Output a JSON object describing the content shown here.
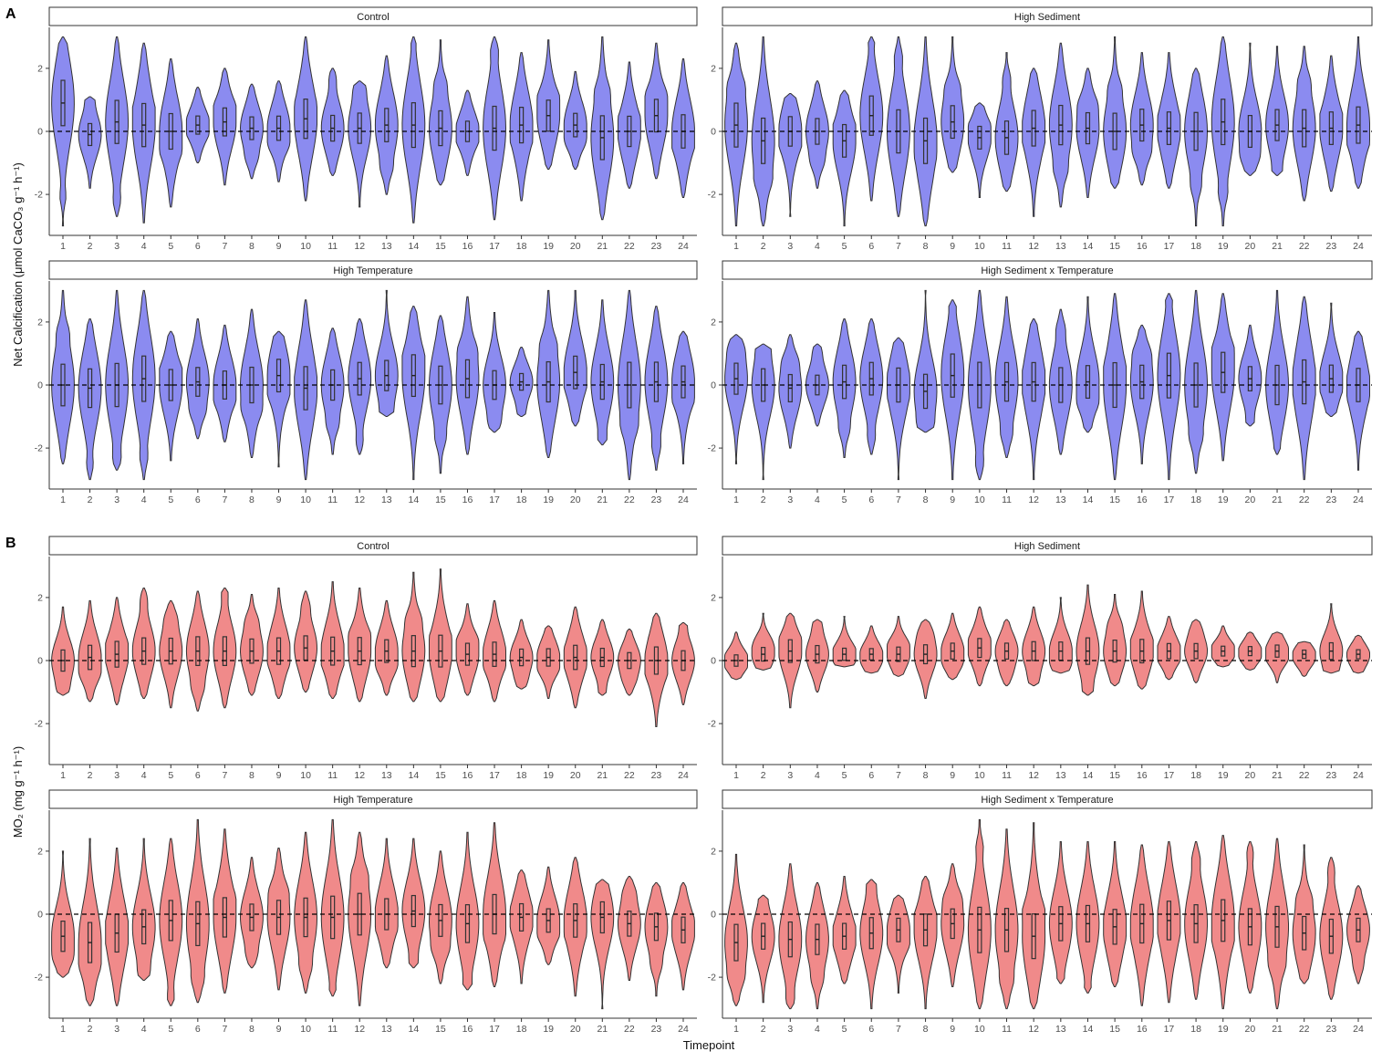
{
  "figure": {
    "panel_letters": [
      "A",
      "B"
    ],
    "xlabel": "Timepoint"
  },
  "chart_data": [
    {
      "type": "violin",
      "panel": "A",
      "ylabel": "Net Calcification (μmol CaCO₃ g⁻¹ h⁻¹)",
      "ylim": [
        -3.3,
        3.3
      ],
      "yticks": [
        -2,
        0,
        2
      ],
      "x": [
        1,
        2,
        3,
        4,
        5,
        6,
        7,
        8,
        9,
        10,
        11,
        12,
        13,
        14,
        15,
        16,
        17,
        18,
        19,
        20,
        21,
        22,
        23,
        24
      ],
      "color": "#8b8bf0",
      "reference_line": 0,
      "facets": [
        {
          "name": "Control",
          "min": [
            -3,
            -1.8,
            -2.7,
            -2.9,
            -2.4,
            -1,
            -1.7,
            -1.5,
            -1.6,
            -2.2,
            -1.4,
            -2.4,
            -2,
            -2.9,
            -1.7,
            -1.4,
            -2.8,
            -2.2,
            -1.2,
            -1.2,
            -2.8,
            -1.8,
            -1.5,
            -2.1
          ],
          "max": [
            3,
            1.1,
            3,
            2.8,
            2.3,
            1.4,
            2,
            1.5,
            1.6,
            3,
            2,
            1.6,
            2.4,
            3,
            2.9,
            1.3,
            3,
            2.5,
            2.9,
            1.9,
            3,
            2.2,
            2.8,
            2.3
          ],
          "median": [
            0.9,
            -0.1,
            0.3,
            0.2,
            0,
            0.2,
            0.3,
            0.1,
            0.1,
            0.4,
            0.1,
            0.1,
            0.2,
            0.2,
            0.1,
            0,
            0.1,
            0.2,
            0.5,
            0.2,
            -0.2,
            0,
            0.5,
            0
          ]
        },
        {
          "name": "High Sediment",
          "min": [
            -3,
            -3,
            -2.7,
            -1.8,
            -3,
            -2.2,
            -2.7,
            -3,
            -1.3,
            -2.1,
            -1.9,
            -2.7,
            -2.4,
            -2.1,
            -1.8,
            -1.7,
            -1.8,
            -3,
            -3,
            -1.4,
            -1.4,
            -2.2,
            -1.9,
            -1.8
          ],
          "max": [
            2.8,
            3,
            1.2,
            1.6,
            1.3,
            3,
            3,
            3,
            3,
            0.9,
            2.5,
            2,
            2.8,
            2,
            3,
            2.5,
            2.5,
            2,
            3,
            2.8,
            2.7,
            2.7,
            2.4,
            3
          ],
          "median": [
            0.2,
            -0.3,
            0,
            0,
            -0.3,
            0.5,
            0,
            -0.3,
            0.3,
            -0.2,
            -0.2,
            0.1,
            0.2,
            0.1,
            0,
            0.2,
            0.1,
            0,
            0.3,
            0,
            0.2,
            0.1,
            0.1,
            0.2
          ]
        },
        {
          "name": "High Temperature",
          "min": [
            -2.5,
            -3,
            -2.7,
            -3,
            -2.4,
            -1.7,
            -1.8,
            -2.3,
            -2.6,
            -3,
            -2.2,
            -2.2,
            -1,
            -3,
            -2.8,
            -2.2,
            -1.5,
            -1,
            -2.3,
            -1.3,
            -1.9,
            -3,
            -2.7,
            -2.5
          ],
          "max": [
            3,
            2.1,
            3,
            3,
            1.7,
            2.1,
            1.9,
            2.4,
            1.7,
            2.7,
            1.8,
            2.1,
            3,
            2.5,
            2.2,
            2.8,
            2.3,
            1.2,
            3,
            3,
            2.7,
            3,
            2.5,
            1.7
          ],
          "median": [
            0,
            -0.1,
            0,
            0.2,
            0,
            0.1,
            0,
            0,
            0.3,
            -0.1,
            0,
            0.2,
            0.3,
            0.3,
            0,
            0.2,
            0,
            0.1,
            0.1,
            0.4,
            0.1,
            0,
            0.1,
            0.1
          ]
        },
        {
          "name": "High Sediment x Temperature",
          "min": [
            -2.5,
            -3,
            -2,
            -1.3,
            -2.3,
            -2.2,
            -3,
            -1.5,
            -3,
            -3,
            -2.3,
            -3,
            -2.2,
            -1.5,
            -3,
            -2.5,
            -3,
            -2.8,
            -2.4,
            -1.3,
            -2.2,
            -3,
            -1,
            -2.7
          ],
          "max": [
            1.6,
            1.3,
            1.6,
            1.3,
            2.1,
            2.1,
            1.5,
            3,
            2.7,
            3,
            2.8,
            2.1,
            2.4,
            2.8,
            2.9,
            1.9,
            2.9,
            3,
            2.9,
            1.9,
            3,
            2.8,
            2.6,
            1.7
          ],
          "median": [
            0.2,
            0,
            -0.1,
            0,
            0.1,
            0.2,
            0,
            -0.2,
            0.3,
            0,
            0.1,
            0.1,
            0,
            0.1,
            0,
            0.1,
            0.3,
            0,
            0.4,
            0.2,
            0,
            0.1,
            0.2,
            0
          ]
        }
      ]
    },
    {
      "type": "violin",
      "panel": "B",
      "ylabel": "MO₂ (mg g⁻¹ h⁻¹)",
      "ylim": [
        -3.3,
        3.3
      ],
      "yticks": [
        -2,
        0,
        2
      ],
      "x": [
        1,
        2,
        3,
        4,
        5,
        6,
        7,
        8,
        9,
        10,
        11,
        12,
        13,
        14,
        15,
        16,
        17,
        18,
        19,
        20,
        21,
        22,
        23,
        24
      ],
      "color": "#f08a8a",
      "reference_line": 0,
      "facets": [
        {
          "name": "Control",
          "min": [
            -1.1,
            -1.3,
            -1.4,
            -1.2,
            -1.5,
            -1.6,
            -1.5,
            -1.1,
            -1.2,
            -1,
            -1.2,
            -1.3,
            -1.1,
            -1.3,
            -1.3,
            -1.1,
            -1.3,
            -0.9,
            -1.2,
            -1.5,
            -1.1,
            -1.1,
            -2.1,
            -1.4
          ],
          "max": [
            1.7,
            1.9,
            2,
            2.3,
            1.9,
            2.2,
            2.3,
            2.1,
            2.3,
            2.2,
            2.5,
            2.3,
            1.9,
            2.8,
            2.9,
            1.8,
            1.9,
            1.3,
            1.1,
            1.7,
            1.3,
            1,
            1.5,
            1.2
          ],
          "median": [
            0,
            0.1,
            0.2,
            0.3,
            0.3,
            0.3,
            0.3,
            0.3,
            0.3,
            0.4,
            0.3,
            0.3,
            0.3,
            0.3,
            0.3,
            0.2,
            0.2,
            0.1,
            0.1,
            0.1,
            0.1,
            0,
            0,
            0
          ]
        },
        {
          "name": "High Sediment",
          "min": [
            -0.6,
            -0.3,
            -1.5,
            -1,
            -0.2,
            -0.4,
            -0.5,
            -1.2,
            -0.6,
            -0.8,
            -0.8,
            -0.8,
            -0.4,
            -1.1,
            -0.8,
            -0.9,
            -0.6,
            -0.7,
            -0.2,
            -0.3,
            -0.7,
            -0.5,
            -0.4,
            -0.4
          ],
          "max": [
            0.9,
            1.5,
            1.5,
            1.3,
            1.4,
            1.1,
            1.4,
            1.3,
            1.5,
            1.7,
            1.3,
            1.7,
            2,
            2.4,
            2.1,
            2.2,
            1.4,
            1.3,
            1.1,
            0.9,
            0.9,
            0.6,
            1.8,
            0.8
          ],
          "median": [
            0,
            0.2,
            0.3,
            0.2,
            0.2,
            0.2,
            0.2,
            0.2,
            0.3,
            0.4,
            0.3,
            0.3,
            0.3,
            0.3,
            0.3,
            0.3,
            0.3,
            0.3,
            0.3,
            0.3,
            0.3,
            0.2,
            0.3,
            0.2
          ]
        },
        {
          "name": "High Temperature",
          "min": [
            -2,
            -2.9,
            -2.9,
            -2.1,
            -2.9,
            -2.8,
            -2.5,
            -1.7,
            -2.4,
            -2.5,
            -2.6,
            -2.9,
            -1.7,
            -1.7,
            -2.2,
            -2.4,
            -2.3,
            -2.2,
            -1.6,
            -2.6,
            -3,
            -2.1,
            -2.6,
            -2.4
          ],
          "max": [
            2,
            2.4,
            2.1,
            2.4,
            2.4,
            3,
            2.7,
            1.8,
            2.1,
            2.6,
            3,
            2.6,
            2.4,
            2.4,
            2,
            2.6,
            2.9,
            1.4,
            1.5,
            1.8,
            1.1,
            1.2,
            1,
            1
          ],
          "median": [
            -0.7,
            -0.9,
            -0.6,
            -0.4,
            -0.2,
            -0.3,
            -0.1,
            -0.1,
            -0.1,
            -0.1,
            -0.1,
            0,
            0,
            0.1,
            -0.2,
            -0.3,
            0,
            -0.1,
            -0.2,
            -0.2,
            -0.1,
            -0.3,
            -0.4,
            -0.5
          ]
        },
        {
          "name": "High Sediment x Temperature",
          "min": [
            -2.9,
            -2.8,
            -3,
            -3,
            -2.2,
            -3,
            -2.5,
            -3,
            -2.3,
            -3,
            -3,
            -3,
            -2.2,
            -2.5,
            -2.3,
            -2.9,
            -2.8,
            -2.7,
            -3,
            -2.5,
            -3,
            -2.2,
            -2.7,
            -2.2
          ],
          "max": [
            1.9,
            0.6,
            1.6,
            1,
            1.2,
            1.1,
            0.6,
            1.2,
            1.6,
            3,
            2.7,
            2.9,
            2.3,
            2.3,
            2.3,
            2.2,
            2.3,
            2.3,
            2.5,
            2.3,
            2.4,
            2.2,
            1.8,
            0.9
          ],
          "median": [
            -0.9,
            -0.7,
            -0.8,
            -0.8,
            -0.7,
            -0.6,
            -0.5,
            -0.5,
            -0.3,
            -0.5,
            -0.5,
            -0.7,
            -0.3,
            -0.3,
            -0.4,
            -0.3,
            -0.2,
            -0.3,
            -0.2,
            -0.4,
            -0.4,
            -0.6,
            -0.7,
            -0.5
          ]
        }
      ]
    }
  ]
}
